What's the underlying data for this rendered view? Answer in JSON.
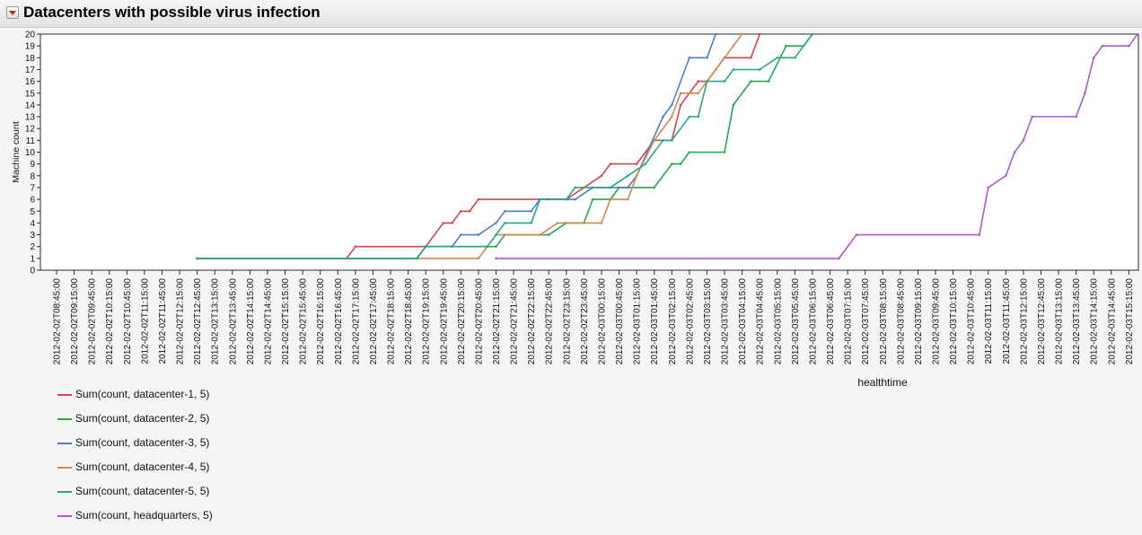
{
  "header": {
    "title": "Datacenters with possible virus infection"
  },
  "colors": {
    "datacenter-1": "#d8434f",
    "datacenter-2": "#22aa4a",
    "datacenter-3": "#4a7fd2",
    "datacenter-4": "#d4894a",
    "datacenter-5": "#22a88a",
    "headquarters": "#a95bd1"
  },
  "chart_data": {
    "type": "line",
    "xlabel": "healthtime",
    "ylabel": "Machine count",
    "ylim": [
      0,
      20
    ],
    "yticks": [
      0,
      1,
      2,
      3,
      4,
      5,
      6,
      7,
      8,
      9,
      10,
      11,
      12,
      13,
      14,
      15,
      16,
      17,
      18,
      19,
      20
    ],
    "grid": false,
    "legend_position": "bottom-left",
    "xticks": [
      "2012-02-02T08:45:00",
      "2012-02-02T09:15:00",
      "2012-02-02T09:45:00",
      "2012-02-02T10:15:00",
      "2012-02-02T10:45:00",
      "2012-02-02T11:15:00",
      "2012-02-02T11:45:00",
      "2012-02-02T12:15:00",
      "2012-02-02T12:45:00",
      "2012-02-02T13:15:00",
      "2012-02-02T13:45:00",
      "2012-02-02T14:15:00",
      "2012-02-02T14:45:00",
      "2012-02-02T15:15:00",
      "2012-02-02T15:45:00",
      "2012-02-02T16:15:00",
      "2012-02-02T16:45:00",
      "2012-02-02T17:15:00",
      "2012-02-02T17:45:00",
      "2012-02-02T18:15:00",
      "2012-02-02T18:45:00",
      "2012-02-02T19:15:00",
      "2012-02-02T19:45:00",
      "2012-02-02T20:15:00",
      "2012-02-02T20:45:00",
      "2012-02-02T21:15:00",
      "2012-02-02T21:45:00",
      "2012-02-02T22:15:00",
      "2012-02-02T22:45:00",
      "2012-02-02T23:15:00",
      "2012-02-02T23:45:00",
      "2012-02-03T00:15:00",
      "2012-02-03T00:45:00",
      "2012-02-03T01:15:00",
      "2012-02-03T01:45:00",
      "2012-02-03T02:15:00",
      "2012-02-03T02:45:00",
      "2012-02-03T03:15:00",
      "2012-02-03T03:45:00",
      "2012-02-03T04:15:00",
      "2012-02-03T04:45:00",
      "2012-02-03T05:15:00",
      "2012-02-03T05:45:00",
      "2012-02-03T06:15:00",
      "2012-02-03T06:45:00",
      "2012-02-03T07:15:00",
      "2012-02-03T07:45:00",
      "2012-02-03T08:15:00",
      "2012-02-03T08:45:00",
      "2012-02-03T09:15:00",
      "2012-02-03T09:45:00",
      "2012-02-03T10:15:00",
      "2012-02-03T10:45:00",
      "2012-02-03T11:15:00",
      "2012-02-03T11:45:00",
      "2012-02-03T12:15:00",
      "2012-02-03T12:45:00",
      "2012-02-03T13:15:00",
      "2012-02-03T13:45:00",
      "2012-02-03T14:15:00",
      "2012-02-03T14:45:00",
      "2012-02-03T15:15:00"
    ],
    "series": [
      {
        "name": "Sum(count, datacenter-1, 5)",
        "key": "datacenter-1",
        "points": [
          [
            "2012-02-02T12:45:00",
            1
          ],
          [
            "2012-02-02T17:00:00",
            1
          ],
          [
            "2012-02-02T17:15:00",
            2
          ],
          [
            "2012-02-02T19:15:00",
            2
          ],
          [
            "2012-02-02T19:45:00",
            4
          ],
          [
            "2012-02-02T20:00:00",
            4
          ],
          [
            "2012-02-02T20:15:00",
            5
          ],
          [
            "2012-02-02T20:30:00",
            5
          ],
          [
            "2012-02-02T20:45:00",
            6
          ],
          [
            "2012-02-02T22:45:00",
            6
          ],
          [
            "2012-02-02T23:15:00",
            6
          ],
          [
            "2012-02-03T00:15:00",
            8
          ],
          [
            "2012-02-03T00:30:00",
            9
          ],
          [
            "2012-02-03T01:15:00",
            9
          ],
          [
            "2012-02-03T01:45:00",
            11
          ],
          [
            "2012-02-03T02:15:00",
            11
          ],
          [
            "2012-02-03T02:30:00",
            14
          ],
          [
            "2012-02-03T03:00:00",
            16
          ],
          [
            "2012-02-03T03:15:00",
            16
          ],
          [
            "2012-02-03T03:45:00",
            18
          ],
          [
            "2012-02-03T04:30:00",
            18
          ],
          [
            "2012-02-03T04:45:00",
            20
          ]
        ]
      },
      {
        "name": "Sum(count, datacenter-2, 5)",
        "key": "datacenter-2",
        "points": [
          [
            "2012-02-02T12:45:00",
            1
          ],
          [
            "2012-02-02T19:00:00",
            1
          ],
          [
            "2012-02-02T19:15:00",
            2
          ],
          [
            "2012-02-02T21:15:00",
            2
          ],
          [
            "2012-02-02T21:30:00",
            3
          ],
          [
            "2012-02-02T22:45:00",
            3
          ],
          [
            "2012-02-02T23:15:00",
            4
          ],
          [
            "2012-02-02T23:45:00",
            4
          ],
          [
            "2012-02-03T00:00:00",
            6
          ],
          [
            "2012-02-03T00:30:00",
            6
          ],
          [
            "2012-02-03T00:45:00",
            7
          ],
          [
            "2012-02-03T01:45:00",
            7
          ],
          [
            "2012-02-03T02:15:00",
            9
          ],
          [
            "2012-02-03T02:30:00",
            9
          ],
          [
            "2012-02-03T02:45:00",
            10
          ],
          [
            "2012-02-03T03:45:00",
            10
          ],
          [
            "2012-02-03T04:00:00",
            14
          ],
          [
            "2012-02-03T04:30:00",
            16
          ],
          [
            "2012-02-03T05:00:00",
            16
          ],
          [
            "2012-02-03T05:30:00",
            19
          ],
          [
            "2012-02-03T06:00:00",
            19
          ],
          [
            "2012-02-03T06:15:00",
            20
          ]
        ]
      },
      {
        "name": "Sum(count, datacenter-3, 5)",
        "key": "datacenter-3",
        "points": [
          [
            "2012-02-02T12:45:00",
            1
          ],
          [
            "2012-02-02T19:00:00",
            1
          ],
          [
            "2012-02-02T19:15:00",
            2
          ],
          [
            "2012-02-02T20:00:00",
            2
          ],
          [
            "2012-02-02T20:15:00",
            3
          ],
          [
            "2012-02-02T20:45:00",
            3
          ],
          [
            "2012-02-02T21:15:00",
            4
          ],
          [
            "2012-02-02T21:30:00",
            5
          ],
          [
            "2012-02-02T22:15:00",
            5
          ],
          [
            "2012-02-02T22:30:00",
            6
          ],
          [
            "2012-02-02T23:30:00",
            6
          ],
          [
            "2012-02-03T00:00:00",
            7
          ],
          [
            "2012-02-03T01:00:00",
            7
          ],
          [
            "2012-02-03T01:15:00",
            8
          ],
          [
            "2012-02-03T02:00:00",
            13
          ],
          [
            "2012-02-03T02:15:00",
            14
          ],
          [
            "2012-02-03T02:45:00",
            18
          ],
          [
            "2012-02-03T03:15:00",
            18
          ],
          [
            "2012-02-03T03:30:00",
            20
          ]
        ]
      },
      {
        "name": "Sum(count, datacenter-4, 5)",
        "key": "datacenter-4",
        "points": [
          [
            "2012-02-02T12:45:00",
            1
          ],
          [
            "2012-02-02T20:45:00",
            1
          ],
          [
            "2012-02-02T21:15:00",
            3
          ],
          [
            "2012-02-02T22:30:00",
            3
          ],
          [
            "2012-02-02T23:00:00",
            4
          ],
          [
            "2012-02-03T00:15:00",
            4
          ],
          [
            "2012-02-03T00:30:00",
            6
          ],
          [
            "2012-02-03T01:00:00",
            6
          ],
          [
            "2012-02-03T01:15:00",
            8
          ],
          [
            "2012-02-03T01:45:00",
            11
          ],
          [
            "2012-02-03T02:15:00",
            13
          ],
          [
            "2012-02-03T02:30:00",
            15
          ],
          [
            "2012-02-03T03:00:00",
            15
          ],
          [
            "2012-02-03T03:30:00",
            17
          ],
          [
            "2012-02-03T04:00:00",
            19
          ],
          [
            "2012-02-03T04:15:00",
            20
          ]
        ]
      },
      {
        "name": "Sum(count, datacenter-5, 5)",
        "key": "datacenter-5",
        "points": [
          [
            "2012-02-02T12:45:00",
            1
          ],
          [
            "2012-02-02T19:00:00",
            1
          ],
          [
            "2012-02-02T19:15:00",
            2
          ],
          [
            "2012-02-02T21:00:00",
            2
          ],
          [
            "2012-02-02T21:15:00",
            3
          ],
          [
            "2012-02-02T21:30:00",
            4
          ],
          [
            "2012-02-02T22:15:00",
            4
          ],
          [
            "2012-02-02T22:30:00",
            6
          ],
          [
            "2012-02-02T23:15:00",
            6
          ],
          [
            "2012-02-02T23:30:00",
            7
          ],
          [
            "2012-02-03T00:30:00",
            7
          ],
          [
            "2012-02-03T01:00:00",
            8
          ],
          [
            "2012-02-03T01:30:00",
            9
          ],
          [
            "2012-02-03T02:00:00",
            11
          ],
          [
            "2012-02-03T02:15:00",
            11
          ],
          [
            "2012-02-03T02:45:00",
            13
          ],
          [
            "2012-02-03T03:00:00",
            13
          ],
          [
            "2012-02-03T03:15:00",
            16
          ],
          [
            "2012-02-03T03:45:00",
            16
          ],
          [
            "2012-02-03T04:00:00",
            17
          ],
          [
            "2012-02-03T04:45:00",
            17
          ],
          [
            "2012-02-03T05:15:00",
            18
          ],
          [
            "2012-02-03T05:45:00",
            18
          ],
          [
            "2012-02-03T06:15:00",
            20
          ]
        ]
      },
      {
        "name": "Sum(count, headquarters, 5)",
        "key": "headquarters",
        "points": [
          [
            "2012-02-02T21:15:00",
            1
          ],
          [
            "2012-02-03T07:00:00",
            1
          ],
          [
            "2012-02-03T07:30:00",
            3
          ],
          [
            "2012-02-03T11:00:00",
            3
          ],
          [
            "2012-02-03T11:15:00",
            7
          ],
          [
            "2012-02-03T11:45:00",
            8
          ],
          [
            "2012-02-03T12:00:00",
            10
          ],
          [
            "2012-02-03T12:15:00",
            11
          ],
          [
            "2012-02-03T12:30:00",
            13
          ],
          [
            "2012-02-03T13:45:00",
            13
          ],
          [
            "2012-02-03T14:00:00",
            15
          ],
          [
            "2012-02-03T14:15:00",
            18
          ],
          [
            "2012-02-03T14:30:00",
            19
          ],
          [
            "2012-02-03T15:15:00",
            19
          ],
          [
            "2012-02-03T15:30:00",
            20
          ]
        ]
      }
    ]
  }
}
